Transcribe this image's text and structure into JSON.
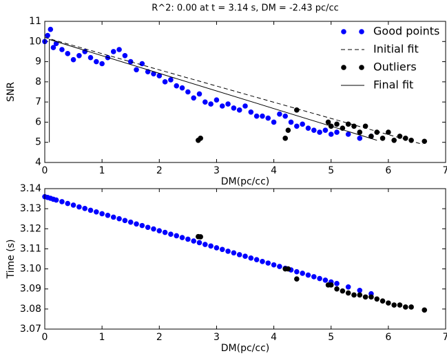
{
  "chart_data": [
    {
      "type": "scatter",
      "title": "R^2: 0.00 at t = 3.14 s, DM = -2.43 pc/cc",
      "xlabel": "DM(pc/cc)",
      "ylabel": "SNR",
      "xlim": [
        0,
        7
      ],
      "xticks": [
        0,
        1,
        2,
        3,
        4,
        5,
        6,
        7
      ],
      "ylim": [
        4,
        11
      ],
      "yticks": [
        4,
        5,
        6,
        7,
        8,
        9,
        10,
        11
      ],
      "legend": "upper right",
      "series": [
        {
          "name": "Good points",
          "color": "#0000ff",
          "style": "dots",
          "x": [
            0.0,
            0.05,
            0.1,
            0.15,
            0.2,
            0.3,
            0.4,
            0.5,
            0.6,
            0.7,
            0.8,
            0.9,
            1.0,
            1.1,
            1.2,
            1.3,
            1.4,
            1.5,
            1.6,
            1.7,
            1.8,
            1.9,
            2.0,
            2.1,
            2.2,
            2.3,
            2.4,
            2.5,
            2.6,
            2.7,
            2.8,
            2.9,
            3.0,
            3.1,
            3.2,
            3.3,
            3.4,
            3.5,
            3.6,
            3.7,
            3.8,
            3.9,
            4.0,
            4.1,
            4.2,
            4.3,
            4.4,
            4.5,
            4.6,
            4.7,
            4.8,
            4.9,
            5.0,
            5.1,
            5.3,
            5.5,
            5.7
          ],
          "values": [
            10.0,
            10.3,
            10.6,
            9.7,
            9.9,
            9.6,
            9.4,
            9.1,
            9.3,
            9.5,
            9.2,
            9.0,
            8.9,
            9.2,
            9.5,
            9.6,
            9.3,
            9.0,
            8.6,
            8.9,
            8.5,
            8.4,
            8.3,
            8.0,
            8.1,
            7.8,
            7.7,
            7.5,
            7.2,
            7.4,
            7.0,
            6.9,
            7.1,
            6.8,
            6.9,
            6.7,
            6.6,
            6.8,
            6.5,
            6.3,
            6.3,
            6.2,
            6.0,
            6.4,
            6.3,
            6.0,
            5.8,
            5.9,
            5.7,
            5.6,
            5.5,
            5.6,
            5.4,
            5.5,
            5.4,
            5.2,
            5.3
          ]
        },
        {
          "name": "Initial fit",
          "color": "#000000",
          "style": "dashed",
          "x": [
            0,
            6.6
          ],
          "values": [
            10.2,
            4.9
          ]
        },
        {
          "name": "Outliers",
          "color": "#000000",
          "style": "dots",
          "x": [
            2.68,
            2.72,
            4.2,
            4.25,
            4.4,
            4.95,
            5.0,
            5.1,
            5.2,
            5.3,
            5.4,
            5.5,
            5.6,
            5.7,
            5.8,
            5.9,
            6.0,
            6.1,
            6.2,
            6.3,
            6.4,
            6.63
          ],
          "values": [
            5.1,
            5.2,
            5.2,
            5.6,
            6.6,
            6.0,
            5.8,
            5.9,
            5.7,
            5.9,
            5.8,
            5.5,
            5.8,
            5.3,
            5.5,
            5.2,
            5.5,
            5.1,
            5.3,
            5.2,
            5.1,
            5.05
          ]
        },
        {
          "name": "Final fit",
          "color": "#000000",
          "style": "solid",
          "x": [
            0.08,
            0.08,
            5.8
          ],
          "values": [
            5.0,
            10.1,
            5.1
          ]
        }
      ]
    },
    {
      "type": "scatter",
      "xlabel": "DM(pc/cc)",
      "ylabel": "Time (s)",
      "xlim": [
        0,
        7
      ],
      "xticks": [
        0,
        1,
        2,
        3,
        4,
        5,
        6,
        7
      ],
      "ylim": [
        3.07,
        3.14
      ],
      "yticks": [
        3.07,
        3.08,
        3.09,
        {
          "value": 3.1,
          "label": "3.10"
        },
        3.11,
        3.12,
        3.13,
        3.14
      ],
      "series": [
        {
          "color": "#0000ff",
          "style": "dots",
          "x": [
            0.0,
            0.05,
            0.1,
            0.15,
            0.2,
            0.3,
            0.4,
            0.5,
            0.6,
            0.7,
            0.8,
            0.9,
            1.0,
            1.1,
            1.2,
            1.3,
            1.4,
            1.5,
            1.6,
            1.7,
            1.8,
            1.9,
            2.0,
            2.1,
            2.2,
            2.3,
            2.4,
            2.5,
            2.6,
            2.7,
            2.8,
            2.9,
            3.0,
            3.1,
            3.2,
            3.3,
            3.4,
            3.5,
            3.6,
            3.7,
            3.8,
            3.9,
            4.0,
            4.1,
            4.2,
            4.3,
            4.4,
            4.5,
            4.6,
            4.7,
            4.8,
            4.9,
            5.0,
            5.1,
            5.3,
            5.5,
            5.7
          ],
          "values": [
            3.136,
            3.1356,
            3.1352,
            3.1347,
            3.1343,
            3.1335,
            3.1326,
            3.1318,
            3.1309,
            3.1301,
            3.1292,
            3.1284,
            3.1275,
            3.1267,
            3.1258,
            3.125,
            3.1241,
            3.1233,
            3.1224,
            3.1216,
            3.1207,
            3.1199,
            3.119,
            3.1182,
            3.1173,
            3.1165,
            3.1156,
            3.1148,
            3.1139,
            3.1131,
            3.1122,
            3.1114,
            3.1105,
            3.1097,
            3.1088,
            3.108,
            3.1071,
            3.1063,
            3.1054,
            3.1046,
            3.1037,
            3.1029,
            3.102,
            3.1012,
            3.1003,
            3.0995,
            3.0986,
            3.0978,
            3.0969,
            3.0961,
            3.0952,
            3.0944,
            3.0935,
            3.0927,
            3.091,
            3.0893,
            3.0876
          ]
        },
        {
          "color": "#000000",
          "style": "dots",
          "x": [
            2.68,
            2.72,
            4.2,
            4.25,
            4.4,
            4.95,
            5.0,
            5.1,
            5.2,
            5.3,
            5.4,
            5.5,
            5.6,
            5.7,
            5.8,
            5.9,
            6.0,
            6.1,
            6.2,
            6.3,
            6.4,
            6.63
          ],
          "values": [
            3.1161,
            3.116,
            3.1,
            3.1,
            3.095,
            3.092,
            3.092,
            3.09,
            3.089,
            3.088,
            3.087,
            3.087,
            3.086,
            3.086,
            3.085,
            3.084,
            3.083,
            3.082,
            3.082,
            3.081,
            3.081,
            3.0795
          ]
        }
      ]
    }
  ]
}
